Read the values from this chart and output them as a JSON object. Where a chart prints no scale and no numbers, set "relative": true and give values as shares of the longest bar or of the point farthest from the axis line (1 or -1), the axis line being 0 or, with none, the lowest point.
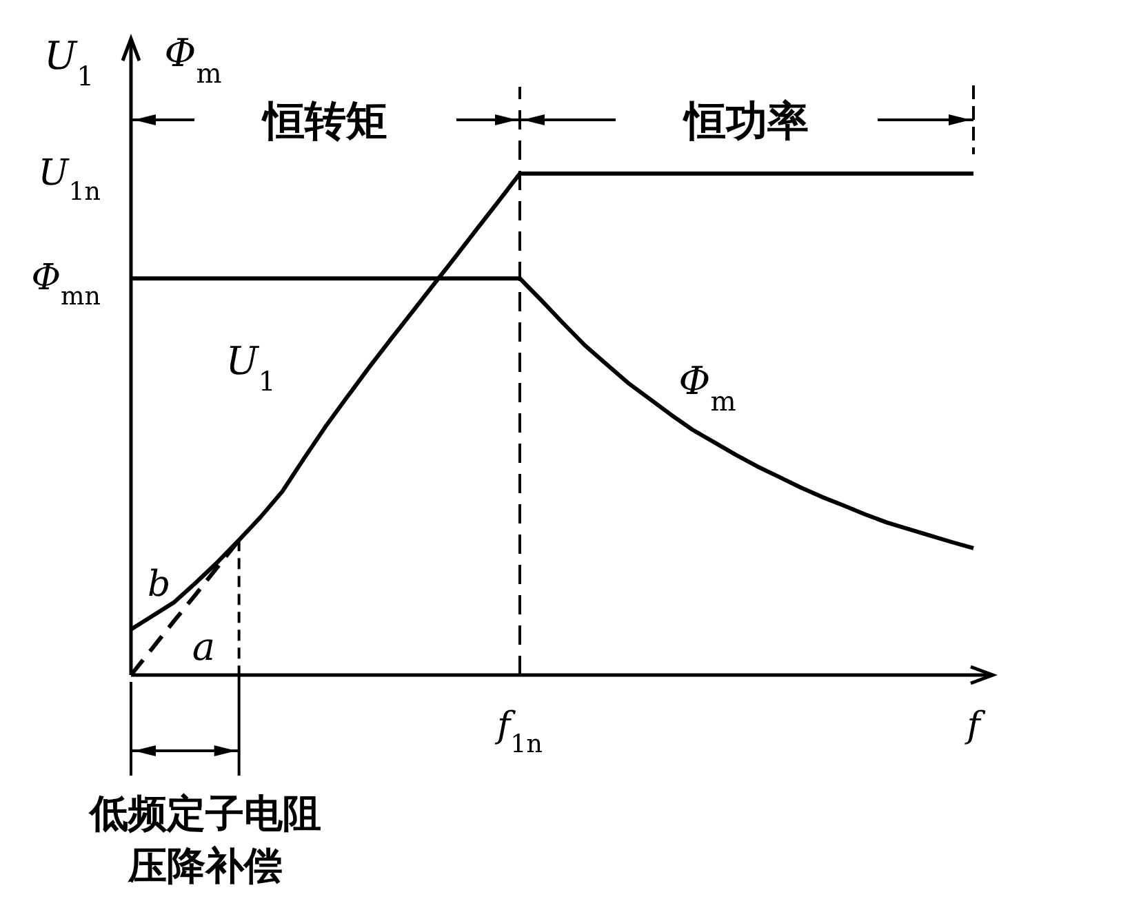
{
  "chart_data": {
    "type": "line",
    "relative": true,
    "ylabel": "U$_{1}$",
    "categories": [
      null,
      null,
      null,
      null,
      null,
      null,
      null,
      null,
      null,
      null,
      null,
      null,
      null,
      null,
      null,
      null,
      null,
      null,
      "f$_{1n}$",
      null,
      null,
      null,
      null,
      null,
      null,
      null,
      null,
      null,
      null,
      null,
      null,
      null,
      null,
      null,
      null,
      null,
      null,
      null,
      null,
      "f"
    ],
    "series": [
      {
        "name": "U$_{1}$",
        "color": "#000000",
        "line_style": "solid",
        "values": [
          0.091,
          0.118,
          0.145,
          0.184,
          0.225,
          0.269,
          0.315,
          0.366,
          0.431,
          0.495,
          0.554,
          0.612,
          0.668,
          0.723,
          0.778,
          0.833,
          0.889,
          0.944,
          1,
          1,
          1,
          1,
          1,
          1,
          1,
          1,
          1,
          1,
          1,
          1,
          1,
          1,
          1,
          1,
          1,
          1,
          1,
          1,
          1,
          1
        ]
      },
      {
        "name": "Φ$_{m}$",
        "color": "#000000",
        "line_style": "solid",
        "values": [
          0.791,
          0.791,
          0.791,
          0.791,
          0.791,
          0.791,
          0.791,
          0.791,
          0.791,
          0.791,
          0.791,
          0.791,
          0.791,
          0.791,
          0.791,
          0.791,
          0.791,
          0.791,
          0.791,
          0.747,
          0.702,
          0.658,
          0.62,
          0.583,
          0.551,
          0.519,
          0.489,
          0.464,
          0.439,
          0.416,
          0.395,
          0.374,
          0.355,
          0.338,
          0.32,
          0.304,
          0.291,
          0.278,
          0.265,
          0.253
        ]
      },
      {
        "name": "a",
        "color": "#000000",
        "line_style": "dashed",
        "values": [
          0,
          0.054,
          0.108,
          0.161,
          0.215,
          0.269,
          null,
          null,
          null,
          null,
          null,
          null,
          null,
          null,
          null,
          null,
          null,
          null,
          null,
          null,
          null,
          null,
          null,
          null,
          null,
          null,
          null,
          null,
          null,
          null,
          null,
          null,
          null,
          null,
          null,
          null,
          null,
          null,
          null,
          null
        ]
      }
    ],
    "ref_lines": [
      {
        "axis": "x",
        "value": "f$_{1n}$",
        "line_style": "dashed"
      }
    ],
    "annotations": [
      "Φ$_{m}$",
      "恒转矩",
      "恒功率",
      "低频定子电阻压降补偿",
      {
        "text": "b",
        "y": 0.13
      },
      "U$_{1n}$",
      "Φ$_{mn}$"
    ]
  }
}
